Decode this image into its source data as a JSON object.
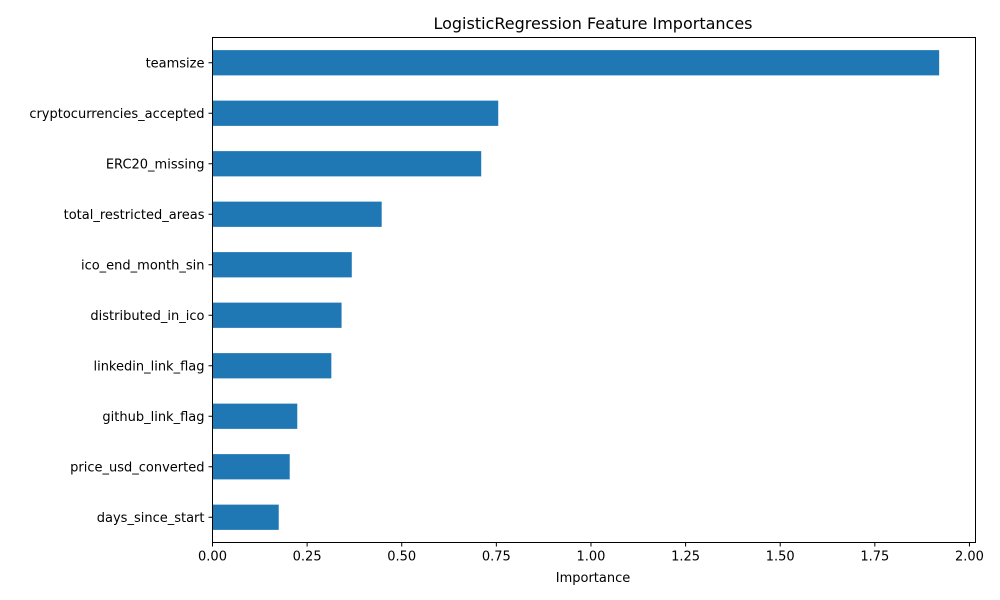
{
  "chart_data": {
    "type": "bar",
    "orientation": "horizontal",
    "title": "LogisticRegression Feature Importances",
    "xlabel": "Importance",
    "ylabel": "",
    "xlim": [
      0,
      2.0
    ],
    "xticks": [
      "0.00",
      "0.25",
      "0.50",
      "0.75",
      "1.00",
      "1.25",
      "1.50",
      "1.75",
      "2.00"
    ],
    "categories": [
      "teamsize",
      "cryptocurrencies_accepted",
      "ERC20_missing",
      "total_restricted_areas",
      "ico_end_month_sin",
      "distributed_in_ico",
      "linkedin_link_flag",
      "github_link_flag",
      "price_usd_converted",
      "days_since_start"
    ],
    "values": [
      1.92,
      0.755,
      0.71,
      0.447,
      0.368,
      0.341,
      0.314,
      0.224,
      0.204,
      0.175
    ],
    "bar_color": "#1f77b4",
    "grid": false
  }
}
